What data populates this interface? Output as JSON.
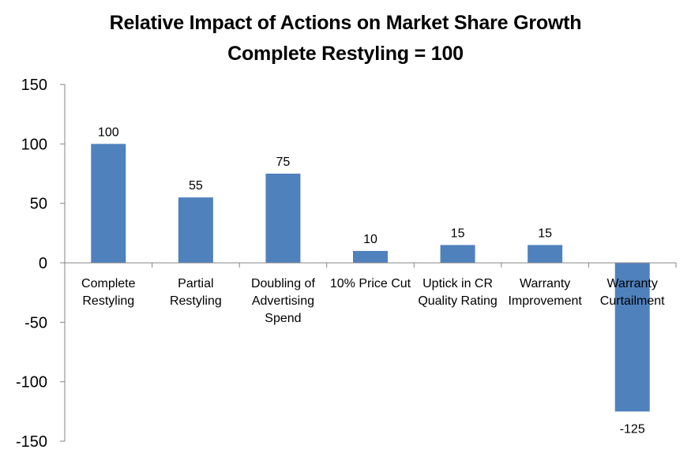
{
  "chart_data": {
    "type": "bar",
    "title": "Relative Impact of Actions on Market Share Growth",
    "subtitle": "Complete Restyling = 100",
    "categories": [
      [
        "Complete",
        "Restyling"
      ],
      [
        "Partial",
        "Restyling"
      ],
      [
        "Doubling of",
        "Advertising",
        "Spend"
      ],
      [
        "10% Price Cut"
      ],
      [
        "Uptick in CR",
        "Quality Rating"
      ],
      [
        "Warranty",
        "Improvement"
      ],
      [
        "Warranty",
        "Curtailment"
      ]
    ],
    "values": [
      100,
      55,
      75,
      10,
      15,
      15,
      -125
    ],
    "data_labels": [
      "100",
      "55",
      "75",
      "10",
      "15",
      "15",
      "-125"
    ],
    "ylim": [
      -150,
      150
    ],
    "yticks": [
      "150",
      "100",
      "50",
      "0",
      "-50",
      "-100",
      "-150"
    ],
    "ytick_values": [
      150,
      100,
      50,
      0,
      -50,
      -100,
      -150
    ],
    "xlabel": "",
    "ylabel": "",
    "grid": false,
    "legend": "none",
    "colors": {
      "bar": "#4f81bd",
      "axis": "#868686",
      "text": "#000000"
    }
  }
}
